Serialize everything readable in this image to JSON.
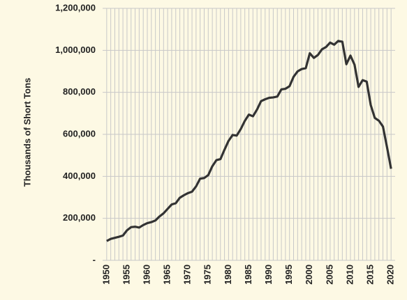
{
  "chart_data": {
    "type": "line",
    "y_label": "Thousands of Short Tons",
    "x": [
      1950,
      1951,
      1952,
      1953,
      1954,
      1955,
      1956,
      1957,
      1958,
      1959,
      1960,
      1961,
      1962,
      1963,
      1964,
      1965,
      1966,
      1967,
      1968,
      1969,
      1970,
      1971,
      1972,
      1973,
      1974,
      1975,
      1976,
      1977,
      1978,
      1979,
      1980,
      1981,
      1982,
      1983,
      1984,
      1985,
      1986,
      1987,
      1988,
      1989,
      1990,
      1991,
      1992,
      1993,
      1994,
      1995,
      1996,
      1997,
      1998,
      1999,
      2000,
      2001,
      2002,
      2003,
      2004,
      2005,
      2006,
      2007,
      2008,
      2009,
      2010,
      2011,
      2012,
      2013,
      2014,
      2015,
      2016,
      2017,
      2018,
      2019,
      2020
    ],
    "series": [
      {
        "color": "#333333",
        "values": [
          92000,
          102000,
          107000,
          112000,
          118000,
          143000,
          158000,
          160000,
          156000,
          168000,
          177000,
          182000,
          190000,
          209000,
          224000,
          245000,
          266000,
          272000,
          298000,
          310000,
          320000,
          327000,
          352000,
          389000,
          392000,
          406000,
          448000,
          477000,
          482000,
          527000,
          569000,
          597000,
          594000,
          625000,
          664000,
          694000,
          686000,
          718000,
          758000,
          767000,
          774000,
          776000,
          780000,
          814000,
          817000,
          829000,
          874000,
          900000,
          911000,
          915000,
          986000,
          964000,
          978000,
          1005000,
          1016000,
          1037000,
          1027000,
          1045000,
          1041000,
          934000,
          975000,
          932000,
          826000,
          858000,
          851000,
          739000,
          678000,
          665000,
          637000,
          539000,
          436000
        ]
      }
    ],
    "xlim": [
      1949,
      2021
    ],
    "xticks": [
      1950,
      1955,
      1960,
      1965,
      1970,
      1975,
      1980,
      1985,
      1990,
      1995,
      2000,
      2005,
      2010,
      2015,
      2020
    ],
    "ylim": [
      0,
      1200000
    ],
    "yticks": [
      {
        "value": 0,
        "label": "-"
      },
      {
        "value": 200000,
        "label": "200,000"
      },
      {
        "value": 400000,
        "label": "400,000"
      },
      {
        "value": 600000,
        "label": "600,000"
      },
      {
        "value": 800000,
        "label": "800,000"
      },
      {
        "value": 1000000,
        "label": "1,000,000"
      },
      {
        "value": 1200000,
        "label": "1,200,000"
      }
    ],
    "grid": true,
    "background": "#fdf9e4"
  }
}
